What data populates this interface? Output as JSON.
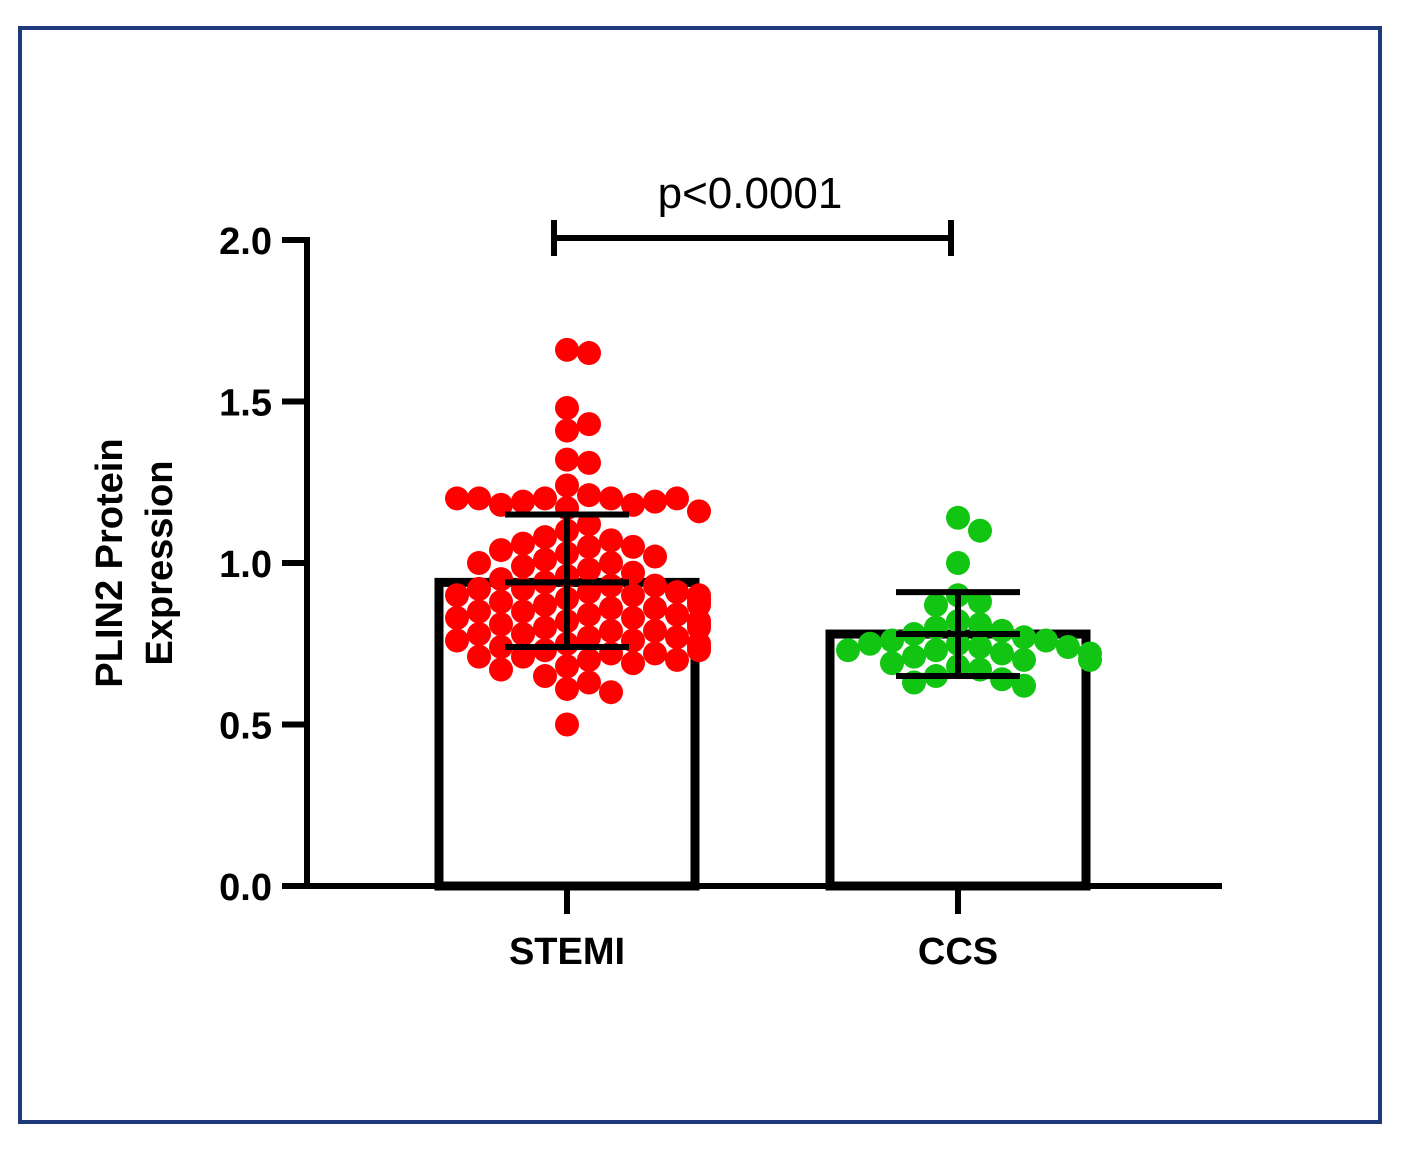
{
  "chart_data": {
    "type": "bar",
    "categories": [
      "STEMI",
      "CCS"
    ],
    "values": [
      0.94,
      0.78
    ],
    "error_upper": [
      1.15,
      0.91
    ],
    "error_lower": [
      0.74,
      0.65
    ],
    "ylabel_lines": [
      "PLIN2 Protein",
      "Expression"
    ],
    "xlabel": "",
    "title": "",
    "ylim": [
      0,
      2.0
    ],
    "yticks": [
      {
        "value": 0.0,
        "label": "0.0"
      },
      {
        "value": 0.5,
        "label": "0.5"
      },
      {
        "value": 1.0,
        "label": "1.0"
      },
      {
        "value": 1.5,
        "label": "1.5"
      },
      {
        "value": 2.0,
        "label": "2.0"
      }
    ],
    "annotation": "p<0.0001",
    "grid": false,
    "point_colors": [
      "#ff0000",
      "#12c512"
    ],
    "points": [
      [
        1.66,
        1.65,
        1.48,
        1.43,
        1.41,
        1.32,
        1.31,
        1.24,
        1.21,
        1.2,
        1.2,
        1.19,
        1.18,
        1.18,
        1.19,
        1.2,
        1.2,
        1.2,
        1.17,
        1.16,
        1.12,
        1.1,
        1.08,
        1.07,
        1.06,
        1.05,
        1.05,
        1.04,
        1.03,
        1.02,
        1.01,
        1.0,
        1.0,
        0.99,
        0.98,
        0.97,
        0.96,
        0.95,
        0.94,
        0.93,
        0.93,
        0.92,
        0.92,
        0.91,
        0.91,
        0.9,
        0.9,
        0.9,
        0.89,
        0.89,
        0.88,
        0.88,
        0.87,
        0.87,
        0.86,
        0.86,
        0.85,
        0.85,
        0.84,
        0.84,
        0.83,
        0.83,
        0.82,
        0.82,
        0.81,
        0.81,
        0.8,
        0.8,
        0.79,
        0.79,
        0.78,
        0.78,
        0.77,
        0.77,
        0.76,
        0.76,
        0.75,
        0.75,
        0.74,
        0.74,
        0.73,
        0.73,
        0.72,
        0.72,
        0.71,
        0.71,
        0.7,
        0.7,
        0.69,
        0.68,
        0.67,
        0.65,
        0.63,
        0.61,
        0.6,
        0.5
      ],
      [
        1.14,
        1.1,
        1.0,
        0.9,
        0.88,
        0.87,
        0.82,
        0.81,
        0.8,
        0.79,
        0.78,
        0.77,
        0.76,
        0.76,
        0.75,
        0.75,
        0.74,
        0.74,
        0.73,
        0.73,
        0.72,
        0.72,
        0.71,
        0.7,
        0.7,
        0.69,
        0.68,
        0.67,
        0.65,
        0.64,
        0.63,
        0.62
      ]
    ]
  }
}
